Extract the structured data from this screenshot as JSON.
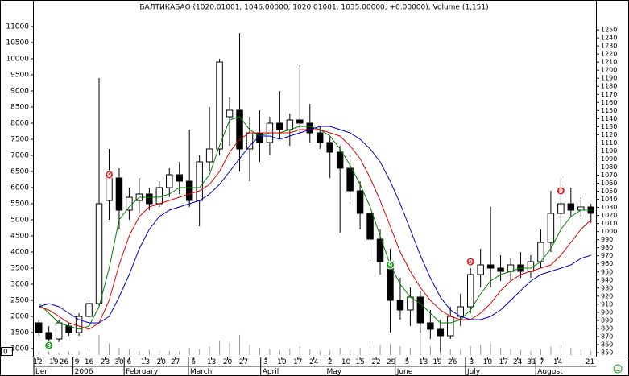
{
  "chart_data": {
    "type": "candlestick",
    "title": "БАЛТИКАБАО (1020.01001, 1046.00000, 1020.01001, 1035.00000, +0.00000), Volume (1,151)",
    "xlim": [
      -0.5,
      55.5
    ],
    "ylim": [
      700,
      11700
    ],
    "yticks": [
      1000,
      1500,
      2000,
      2500,
      3000,
      3500,
      4000,
      4500,
      5000,
      5500,
      6000,
      6500,
      7000,
      7500,
      8000,
      8500,
      9000,
      9500,
      10000,
      10500,
      11000
    ],
    "y2lim": [
      843,
      1282
    ],
    "y2ticks": [
      850,
      860,
      870,
      880,
      890,
      900,
      910,
      920,
      930,
      940,
      950,
      960,
      970,
      980,
      990,
      1000,
      1010,
      1020,
      1030,
      1040,
      1050,
      1060,
      1070,
      1080,
      1090,
      1100,
      1110,
      1120,
      1130,
      1140,
      1150,
      1160,
      1170,
      1180,
      1190,
      1200,
      1210,
      1220,
      1230,
      1240,
      1250
    ],
    "xticks": [
      {
        "value": -0.1,
        "label": "12"
      },
      {
        "value": 1.5,
        "label": "19"
      },
      {
        "value": 2.5,
        "label": "26"
      },
      {
        "value": 3.8,
        "label": "9"
      },
      {
        "value": 5.0,
        "label": "16"
      },
      {
        "value": 6.6,
        "label": "23"
      },
      {
        "value": 8.0,
        "label": "30"
      },
      {
        "value": 9.0,
        "label": "6"
      },
      {
        "value": 10.6,
        "label": "13"
      },
      {
        "value": 12.2,
        "label": "20"
      },
      {
        "value": 13.6,
        "label": "27"
      },
      {
        "value": 15.4,
        "label": "6"
      },
      {
        "value": 17.2,
        "label": "13"
      },
      {
        "value": 18.8,
        "label": "20"
      },
      {
        "value": 20.4,
        "label": "27"
      },
      {
        "value": 22.6,
        "label": "3"
      },
      {
        "value": 24.2,
        "label": "10"
      },
      {
        "value": 25.8,
        "label": "17"
      },
      {
        "value": 27.4,
        "label": "24"
      },
      {
        "value": 29.0,
        "label": "2"
      },
      {
        "value": 30.6,
        "label": "10"
      },
      {
        "value": 32.0,
        "label": "15"
      },
      {
        "value": 33.6,
        "label": "22"
      },
      {
        "value": 35.1,
        "label": "29"
      },
      {
        "value": 36.7,
        "label": "5"
      },
      {
        "value": 38.3,
        "label": "13"
      },
      {
        "value": 39.7,
        "label": "19"
      },
      {
        "value": 41.2,
        "label": "26"
      },
      {
        "value": 43.1,
        "label": "3"
      },
      {
        "value": 44.7,
        "label": "10"
      },
      {
        "value": 46.3,
        "label": "17"
      },
      {
        "value": 47.7,
        "label": "24"
      },
      {
        "value": 49.1,
        "label": "31"
      },
      {
        "value": 50.1,
        "label": "7"
      },
      {
        "value": 51.7,
        "label": "14"
      },
      {
        "value": 54.9,
        "label": "21"
      }
    ],
    "months": [
      {
        "value": -0.5,
        "label": "ber"
      },
      {
        "value": 3.4,
        "label": "2006"
      },
      {
        "value": 8.5,
        "label": "February"
      },
      {
        "value": 14.9,
        "label": "March"
      },
      {
        "value": 22.1,
        "label": "April"
      },
      {
        "value": 28.5,
        "label": "May"
      },
      {
        "value": 35.5,
        "label": "June"
      },
      {
        "value": 42.5,
        "label": "July"
      },
      {
        "value": 49.5,
        "label": "August"
      }
    ],
    "open": [
      1800,
      1500,
      1300,
      1700,
      1500,
      2000,
      2400,
      5600,
      6300,
      5300,
      5600,
      5800,
      5500,
      6000,
      6400,
      6200,
      5600,
      6800,
      7200,
      8200,
      8400,
      7200,
      7700,
      7400,
      8000,
      7800,
      8100,
      8000,
      7700,
      7400,
      7100,
      6600,
      5900,
      5200,
      4400,
      3700,
      2500,
      2200,
      2600,
      1800,
      1600,
      1400,
      2000,
      2300,
      3300,
      3600,
      3500,
      3400,
      3600,
      3400,
      3700,
      4300,
      5200,
      5500,
      5300,
      5400
    ],
    "high": [
      1900,
      1700,
      1900,
      1800,
      2100,
      2500,
      9400,
      7200,
      6600,
      6000,
      6300,
      6000,
      6200,
      6600,
      6800,
      7800,
      7000,
      8500,
      10000,
      8800,
      10800,
      8200,
      8400,
      8200,
      9000,
      8300,
      9800,
      8600,
      7900,
      7600,
      7300,
      7000,
      6200,
      5500,
      4700,
      4100,
      3200,
      2900,
      2800,
      2200,
      1900,
      2300,
      2700,
      3500,
      4100,
      5400,
      3900,
      3800,
      4000,
      3900,
      4700,
      5900,
      6300,
      6000,
      5700,
      5500
    ],
    "low": [
      1400,
      1000,
      1200,
      1400,
      1400,
      1800,
      2300,
      5000,
      4700,
      5000,
      5200,
      5300,
      5400,
      5700,
      5800,
      5400,
      4800,
      6500,
      7000,
      7300,
      6500,
      6200,
      6800,
      7000,
      7500,
      7300,
      7700,
      7400,
      7200,
      6300,
      4600,
      5600,
      4700,
      3800,
      3300,
      1500,
      1900,
      1700,
      1500,
      1300,
      900,
      1300,
      1700,
      2100,
      2900,
      2900,
      3100,
      3100,
      3200,
      3200,
      3500,
      4000,
      4700,
      5100,
      5100,
      4900
    ],
    "close": [
      1500,
      1300,
      1800,
      1500,
      2000,
      2400,
      5500,
      6500,
      5300,
      5700,
      5800,
      5500,
      6000,
      6400,
      6200,
      5600,
      6800,
      7200,
      9900,
      8400,
      7200,
      7700,
      7400,
      8000,
      7800,
      8100,
      8000,
      7700,
      7400,
      7100,
      6600,
      5900,
      5200,
      4400,
      3700,
      2500,
      2200,
      2600,
      1800,
      1600,
      1400,
      2000,
      2300,
      3300,
      3600,
      3500,
      3400,
      3600,
      3400,
      3700,
      4300,
      5200,
      5500,
      5300,
      5400,
      5200
    ],
    "volume": [
      1500,
      1200,
      900,
      1100,
      1300,
      2000,
      7000,
      4000,
      2500,
      2000,
      1500,
      1800,
      1600,
      1400,
      1200,
      2500,
      2000,
      3000,
      5000,
      4500,
      7000,
      3500,
      2500,
      2000,
      1800,
      2200,
      3000,
      2000,
      1500,
      1800,
      2500,
      2000,
      2500,
      3000,
      3500,
      4000,
      3000,
      2500,
      9000,
      3000,
      2500,
      2000,
      1800,
      3000,
      3500,
      4000,
      2500,
      2000,
      1800,
      1500,
      2000,
      3000,
      3500,
      2500,
      2000,
      1500
    ],
    "vlim": [
      0,
      10000
    ],
    "vticks": [
      0
    ],
    "series": [
      {
        "color": "#008000",
        "values": [
          2400,
          2100,
          1800,
          1700,
          1600,
          1700,
          2300,
          3500,
          5000,
          5400,
          5700,
          5700,
          5700,
          5800,
          6000,
          6000,
          6000,
          6400,
          7300,
          8100,
          8200,
          7800,
          7600,
          7700,
          7700,
          7800,
          7900,
          7900,
          7800,
          7600,
          7200,
          6700,
          6100,
          5400,
          4500,
          3600,
          3000,
          2600,
          2400,
          2100,
          1800,
          1800,
          1900,
          2200,
          2700,
          3100,
          3300,
          3400,
          3500,
          3500,
          3700,
          4100,
          4700,
          5100,
          5300,
          5300
        ]
      },
      {
        "color": "#e00000",
        "values": [
          2300,
          2200,
          2000,
          1800,
          1700,
          1600,
          1800,
          2500,
          3600,
          4500,
          5100,
          5400,
          5500,
          5600,
          5700,
          5800,
          5900,
          6100,
          6500,
          7100,
          7500,
          7700,
          7700,
          7700,
          7700,
          7700,
          7800,
          7800,
          7800,
          7700,
          7600,
          7300,
          6900,
          6300,
          5600,
          4800,
          4000,
          3400,
          2900,
          2500,
          2200,
          2000,
          1900,
          1900,
          2100,
          2400,
          2800,
          3100,
          3300,
          3400,
          3500,
          3600,
          3900,
          4300,
          4700,
          5000
        ]
      },
      {
        "color": "#0000d0",
        "values": [
          2300,
          2400,
          2300,
          2100,
          1900,
          1800,
          1800,
          2000,
          2600,
          3300,
          4100,
          4700,
          5100,
          5300,
          5400,
          5500,
          5600,
          5800,
          6100,
          6500,
          6900,
          7300,
          7600,
          7600,
          7500,
          7600,
          7700,
          7800,
          7900,
          7900,
          7800,
          7700,
          7500,
          7200,
          6800,
          6200,
          5500,
          4700,
          3900,
          3200,
          2600,
          2200,
          2000,
          1900,
          1900,
          2000,
          2200,
          2500,
          2800,
          3100,
          3300,
          3400,
          3500,
          3600,
          3800,
          3900
        ]
      }
    ],
    "annotations": [
      {
        "label": "9",
        "index": 1,
        "value": 1100,
        "color": "#1a9a1a"
      },
      {
        "label": "9",
        "index": 7,
        "value": 6400,
        "color": "#e02020"
      },
      {
        "label": "9",
        "index": 35,
        "value": 3600,
        "color": "#1a9a1a"
      },
      {
        "label": "9",
        "index": 43,
        "value": 3700,
        "color": "#e02020"
      },
      {
        "label": "9",
        "index": 52,
        "value": 5900,
        "color": "#e02020"
      }
    ]
  }
}
